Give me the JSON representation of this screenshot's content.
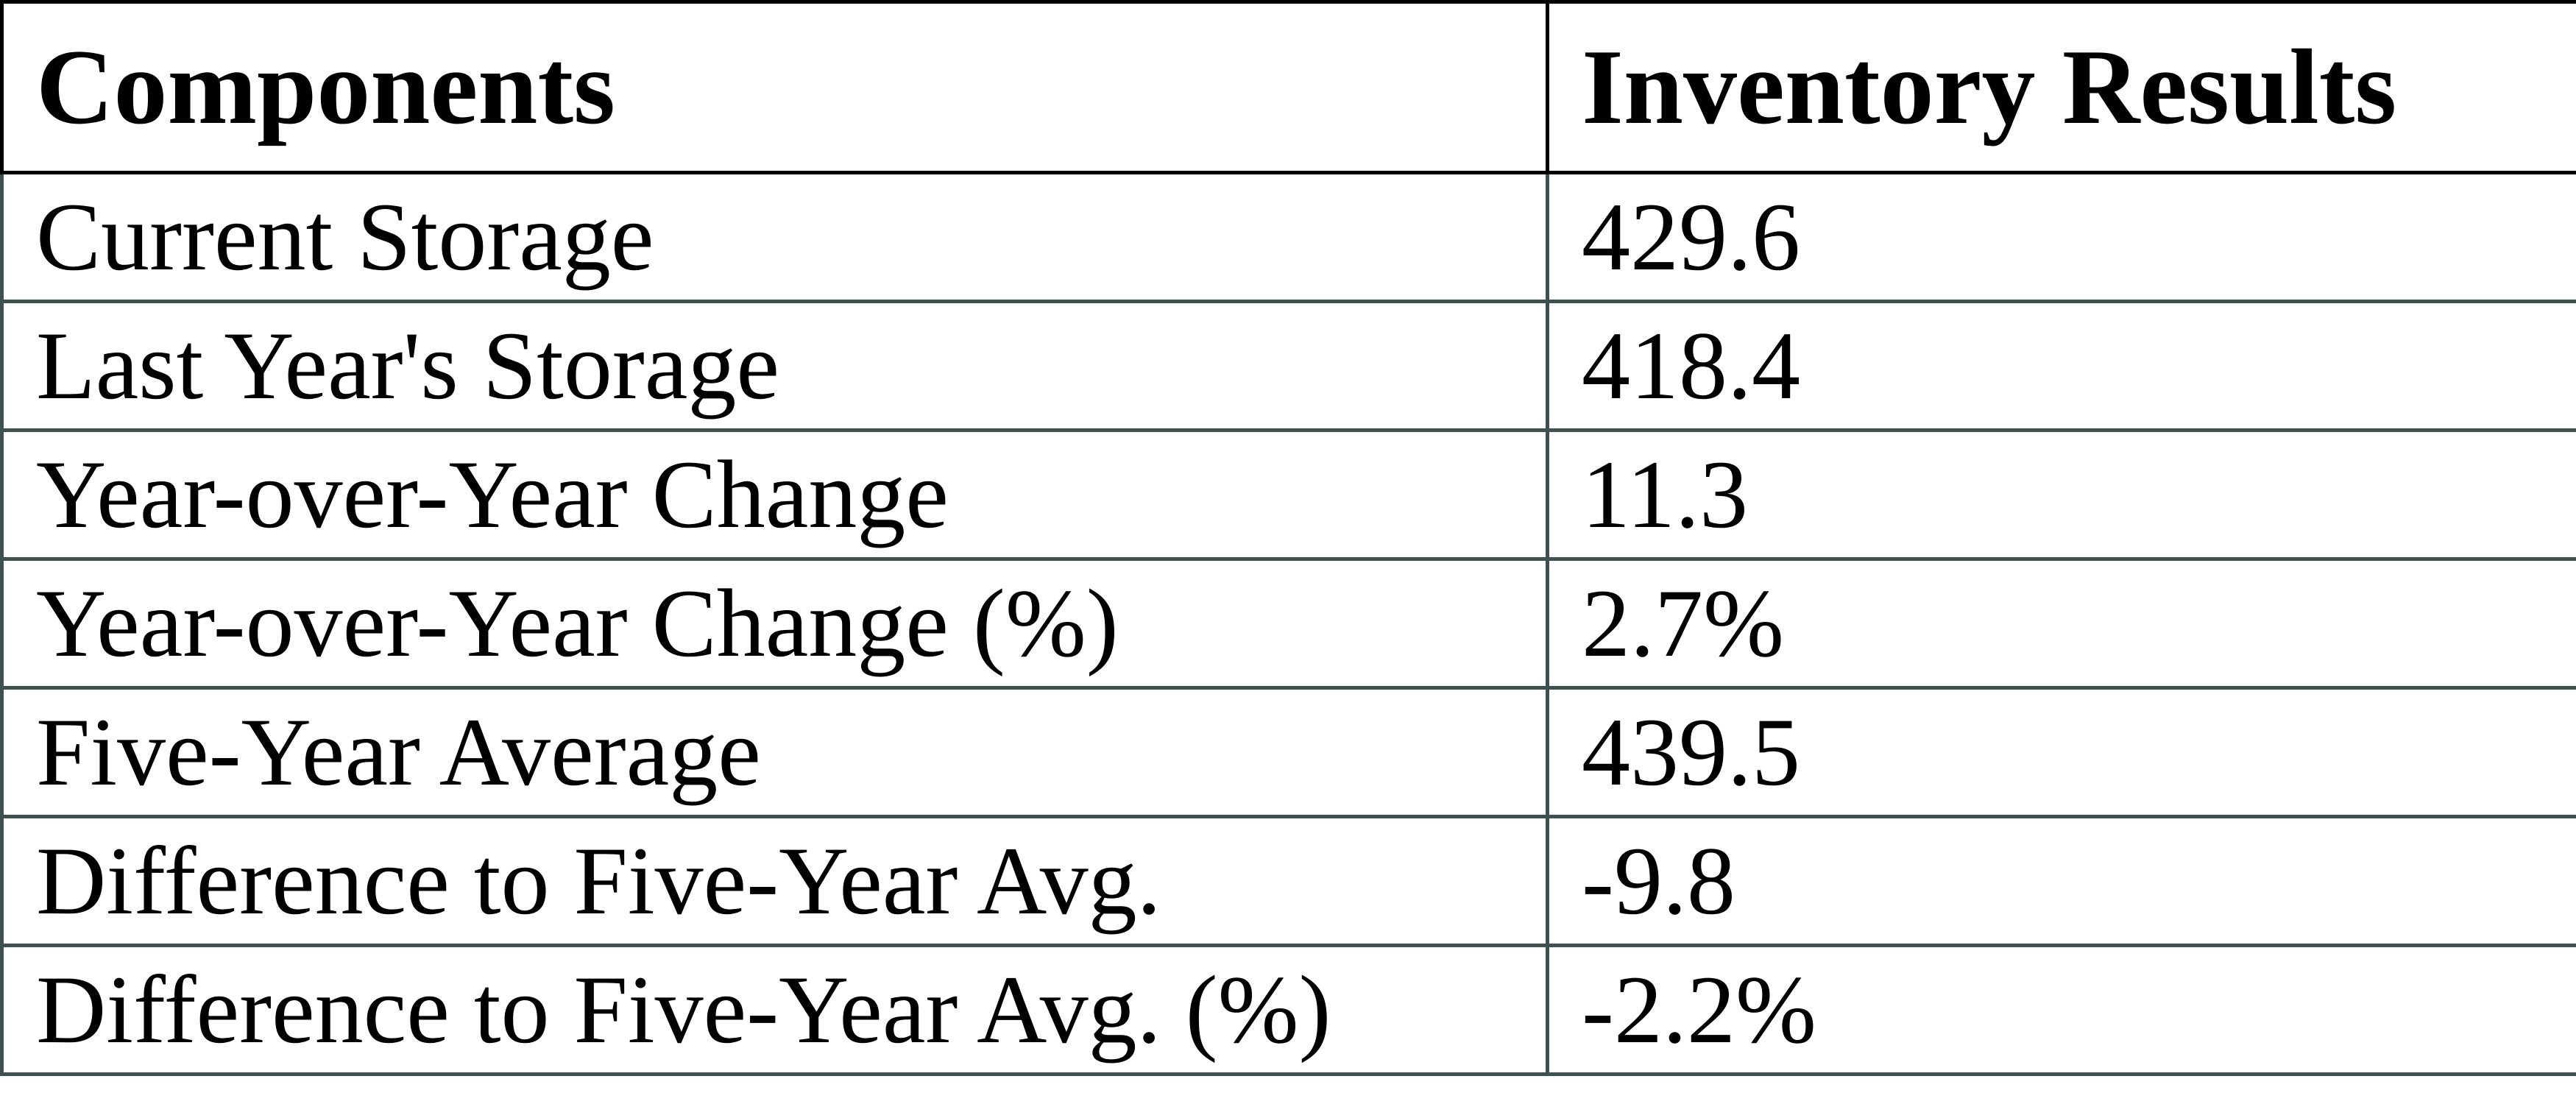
{
  "chart_data": {
    "type": "table",
    "columns": [
      "Components",
      "Inventory Results"
    ],
    "rows": [
      [
        "Current Storage",
        "429.6"
      ],
      [
        "Last Year's Storage",
        "418.4"
      ],
      [
        "Year-over-Year Change",
        "11.3"
      ],
      [
        "Year-over-Year Change (%)",
        "2.7%"
      ],
      [
        "Five-Year Average",
        "439.5"
      ],
      [
        "Difference to Five-Year Avg.",
        "-9.8"
      ],
      [
        "Difference to Five-Year Avg. (%)",
        "-2.2%"
      ]
    ],
    "values_numeric": {
      "current_storage": 429.6,
      "last_year_storage": 418.4,
      "year_over_year_change": 11.3,
      "year_over_year_change_pct": 2.7,
      "five_year_average": 439.5,
      "difference_to_five_year_avg": -9.8,
      "difference_to_five_year_avg_pct": -2.2
    },
    "layout": {
      "header_bold": true,
      "grid": true
    }
  },
  "colors": {
    "header_border": "#000000",
    "body_border": "#3e5151",
    "text": "#000000",
    "background": "#ffffff"
  }
}
